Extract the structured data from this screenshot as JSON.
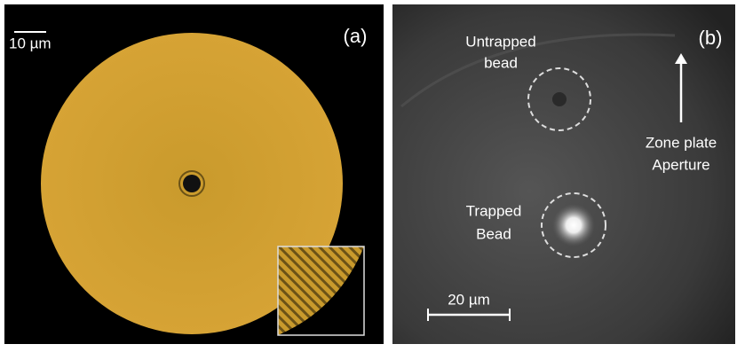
{
  "panels": [
    {
      "label": "(a)",
      "scale_bar": "10 µm"
    },
    {
      "label": "(b)",
      "scale_bar": "20 µm",
      "annotations": [
        "Untrapped",
        "bead",
        "Trapped",
        "Bead",
        "Zone plate",
        "Aperture"
      ]
    }
  ]
}
